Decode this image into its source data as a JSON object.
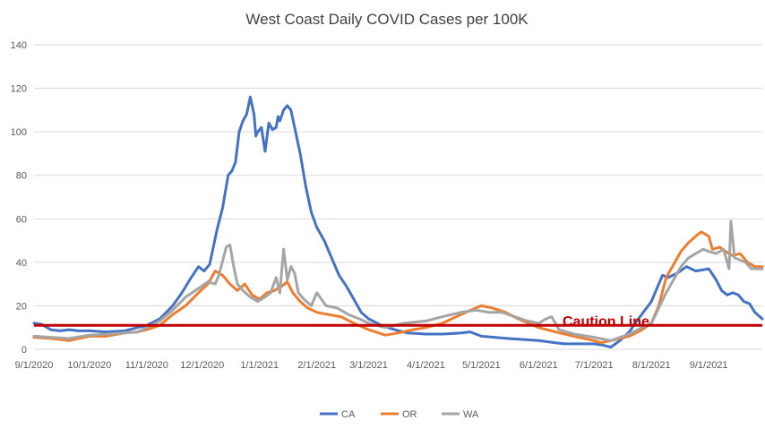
{
  "chart_data": {
    "type": "line",
    "title": "West Coast Daily COVID Cases per 100K",
    "xlabel": "",
    "ylabel": "",
    "ylim": [
      0,
      140
    ],
    "yticks": [
      "0",
      "20",
      "40",
      "60",
      "80",
      "100",
      "120",
      "140"
    ],
    "xticks": [
      {
        "date": "2020-09-01",
        "label": "9/1/2020"
      },
      {
        "date": "2020-10-01",
        "label": "10/1/2020"
      },
      {
        "date": "2020-11-01",
        "label": "11/1/2020"
      },
      {
        "date": "2020-12-01",
        "label": "12/1/2020"
      },
      {
        "date": "2021-01-01",
        "label": "1/1/2021"
      },
      {
        "date": "2021-02-01",
        "label": "2/1/2021"
      },
      {
        "date": "2021-03-01",
        "label": "3/1/2021"
      },
      {
        "date": "2021-04-01",
        "label": "4/1/2021"
      },
      {
        "date": "2021-05-01",
        "label": "5/1/2021"
      },
      {
        "date": "2021-06-01",
        "label": "6/1/2021"
      },
      {
        "date": "2021-07-01",
        "label": "7/1/2021"
      },
      {
        "date": "2021-08-01",
        "label": "8/1/2021"
      },
      {
        "date": "2021-09-01",
        "label": "9/1/2021"
      }
    ],
    "xlim": [
      "2020-09-01",
      "2021-09-30"
    ],
    "grid": true,
    "legend": "bottom",
    "reference_line": {
      "value": 11,
      "label": "Caution Line",
      "color": "#c00000"
    },
    "series": [
      {
        "name": "CA",
        "color": "#4472c4",
        "points": [
          [
            "2020-09-01",
            12
          ],
          [
            "2020-09-05",
            11.5
          ],
          [
            "2020-09-10",
            9
          ],
          [
            "2020-09-15",
            8.5
          ],
          [
            "2020-09-20",
            9
          ],
          [
            "2020-09-25",
            8.5
          ],
          [
            "2020-10-01",
            8.5
          ],
          [
            "2020-10-10",
            8
          ],
          [
            "2020-10-20",
            8.5
          ],
          [
            "2020-10-27",
            10
          ],
          [
            "2020-11-01",
            11
          ],
          [
            "2020-11-08",
            14
          ],
          [
            "2020-11-15",
            20
          ],
          [
            "2020-11-20",
            26
          ],
          [
            "2020-11-25",
            33
          ],
          [
            "2020-11-29",
            38
          ],
          [
            "2020-12-02",
            36
          ],
          [
            "2020-12-05",
            39
          ],
          [
            "2020-12-09",
            55
          ],
          [
            "2020-12-12",
            65
          ],
          [
            "2020-12-15",
            80
          ],
          [
            "2020-12-17",
            82
          ],
          [
            "2020-12-19",
            86
          ],
          [
            "2020-12-21",
            100
          ],
          [
            "2020-12-23",
            105
          ],
          [
            "2020-12-25",
            108
          ],
          [
            "2020-12-27",
            116
          ],
          [
            "2020-12-29",
            108
          ],
          [
            "2020-12-30",
            98
          ],
          [
            "2020-12-31",
            100
          ],
          [
            "2021-01-02",
            102
          ],
          [
            "2021-01-04",
            91
          ],
          [
            "2021-01-06",
            104
          ],
          [
            "2021-01-08",
            101
          ],
          [
            "2021-01-10",
            102
          ],
          [
            "2021-01-11",
            107
          ],
          [
            "2021-01-12",
            105
          ],
          [
            "2021-01-14",
            110
          ],
          [
            "2021-01-16",
            112
          ],
          [
            "2021-01-18",
            110
          ],
          [
            "2021-01-20",
            102
          ],
          [
            "2021-01-23",
            90
          ],
          [
            "2021-01-26",
            75
          ],
          [
            "2021-01-29",
            63
          ],
          [
            "2021-02-01",
            56
          ],
          [
            "2021-02-05",
            50
          ],
          [
            "2021-02-09",
            42
          ],
          [
            "2021-02-13",
            34
          ],
          [
            "2021-02-17",
            29
          ],
          [
            "2021-02-21",
            23
          ],
          [
            "2021-02-25",
            17
          ],
          [
            "2021-03-01",
            14
          ],
          [
            "2021-03-08",
            11
          ],
          [
            "2021-03-15",
            9
          ],
          [
            "2021-03-22",
            7.5
          ],
          [
            "2021-04-01",
            7
          ],
          [
            "2021-04-10",
            7
          ],
          [
            "2021-04-20",
            7.5
          ],
          [
            "2021-04-25",
            8
          ],
          [
            "2021-05-01",
            6
          ],
          [
            "2021-05-15",
            5
          ],
          [
            "2021-06-01",
            4
          ],
          [
            "2021-06-10",
            3
          ],
          [
            "2021-06-15",
            2.5
          ],
          [
            "2021-07-01",
            2.5
          ],
          [
            "2021-07-05",
            2
          ],
          [
            "2021-07-10",
            1
          ],
          [
            "2021-07-15",
            4
          ],
          [
            "2021-07-20",
            8
          ],
          [
            "2021-07-25",
            14
          ],
          [
            "2021-08-01",
            22
          ],
          [
            "2021-08-05",
            30
          ],
          [
            "2021-08-07",
            34
          ],
          [
            "2021-08-10",
            33
          ],
          [
            "2021-08-15",
            35
          ],
          [
            "2021-08-20",
            38
          ],
          [
            "2021-08-25",
            36
          ],
          [
            "2021-09-01",
            37
          ],
          [
            "2021-09-05",
            32
          ],
          [
            "2021-09-08",
            27
          ],
          [
            "2021-09-11",
            25
          ],
          [
            "2021-09-14",
            26
          ],
          [
            "2021-09-17",
            25
          ],
          [
            "2021-09-20",
            22
          ],
          [
            "2021-09-23",
            21
          ],
          [
            "2021-09-26",
            17
          ],
          [
            "2021-09-30",
            14
          ]
        ]
      },
      {
        "name": "OR",
        "color": "#ed7d31",
        "points": [
          [
            "2020-09-01",
            5.5
          ],
          [
            "2020-09-10",
            5
          ],
          [
            "2020-09-20",
            4
          ],
          [
            "2020-10-01",
            6
          ],
          [
            "2020-10-10",
            6
          ],
          [
            "2020-10-20",
            7.5
          ],
          [
            "2020-10-27",
            8
          ],
          [
            "2020-11-01",
            9
          ],
          [
            "2020-11-08",
            11
          ],
          [
            "2020-11-15",
            16
          ],
          [
            "2020-11-22",
            20
          ],
          [
            "2020-11-29",
            26
          ],
          [
            "2020-12-04",
            30
          ],
          [
            "2020-12-08",
            36
          ],
          [
            "2020-12-12",
            34
          ],
          [
            "2020-12-16",
            30
          ],
          [
            "2020-12-20",
            27
          ],
          [
            "2020-12-24",
            30
          ],
          [
            "2020-12-28",
            25
          ],
          [
            "2021-01-01",
            23
          ],
          [
            "2021-01-05",
            26
          ],
          [
            "2021-01-09",
            27
          ],
          [
            "2021-01-13",
            29
          ],
          [
            "2021-01-16",
            31
          ],
          [
            "2021-01-19",
            26
          ],
          [
            "2021-01-23",
            22
          ],
          [
            "2021-01-27",
            19
          ],
          [
            "2021-02-01",
            17
          ],
          [
            "2021-02-07",
            16
          ],
          [
            "2021-02-14",
            15
          ],
          [
            "2021-02-21",
            12
          ],
          [
            "2021-03-01",
            9
          ],
          [
            "2021-03-10",
            6.5
          ],
          [
            "2021-03-17",
            7.5
          ],
          [
            "2021-03-25",
            9
          ],
          [
            "2021-04-01",
            10
          ],
          [
            "2021-04-10",
            12
          ],
          [
            "2021-04-20",
            16
          ],
          [
            "2021-04-28",
            19
          ],
          [
            "2021-05-01",
            20
          ],
          [
            "2021-05-07",
            19
          ],
          [
            "2021-05-14",
            17
          ],
          [
            "2021-05-21",
            14
          ],
          [
            "2021-06-01",
            10
          ],
          [
            "2021-06-10",
            8
          ],
          [
            "2021-06-20",
            6
          ],
          [
            "2021-07-01",
            4
          ],
          [
            "2021-07-05",
            3
          ],
          [
            "2021-07-10",
            4
          ],
          [
            "2021-07-20",
            6
          ],
          [
            "2021-07-27",
            9
          ],
          [
            "2021-08-01",
            12
          ],
          [
            "2021-08-05",
            20
          ],
          [
            "2021-08-09",
            33
          ],
          [
            "2021-08-13",
            39
          ],
          [
            "2021-08-17",
            45
          ],
          [
            "2021-08-21",
            49
          ],
          [
            "2021-08-25",
            52
          ],
          [
            "2021-08-28",
            54
          ],
          [
            "2021-09-01",
            52
          ],
          [
            "2021-09-03",
            46
          ],
          [
            "2021-09-07",
            47
          ],
          [
            "2021-09-10",
            45
          ],
          [
            "2021-09-14",
            43
          ],
          [
            "2021-09-18",
            44
          ],
          [
            "2021-09-22",
            40
          ],
          [
            "2021-09-26",
            38
          ],
          [
            "2021-09-30",
            38
          ]
        ]
      },
      {
        "name": "WA",
        "color": "#a5a5a5",
        "points": [
          [
            "2020-09-01",
            6
          ],
          [
            "2020-09-10",
            5.5
          ],
          [
            "2020-09-20",
            5
          ],
          [
            "2020-10-01",
            6.5
          ],
          [
            "2020-10-10",
            7
          ],
          [
            "2020-10-20",
            7.5
          ],
          [
            "2020-10-27",
            8
          ],
          [
            "2020-11-01",
            10
          ],
          [
            "2020-11-08",
            13
          ],
          [
            "2020-11-15",
            18
          ],
          [
            "2020-11-22",
            24
          ],
          [
            "2020-11-29",
            28
          ],
          [
            "2020-12-04",
            31
          ],
          [
            "2020-12-08",
            30
          ],
          [
            "2020-12-10",
            34
          ],
          [
            "2020-12-14",
            47
          ],
          [
            "2020-12-16",
            48
          ],
          [
            "2020-12-18",
            38
          ],
          [
            "2020-12-20",
            30
          ],
          [
            "2020-12-23",
            27
          ],
          [
            "2020-12-27",
            24
          ],
          [
            "2020-12-31",
            22
          ],
          [
            "2021-01-04",
            24
          ],
          [
            "2021-01-07",
            26
          ],
          [
            "2021-01-10",
            33
          ],
          [
            "2021-01-12",
            26
          ],
          [
            "2021-01-14",
            46
          ],
          [
            "2021-01-16",
            32
          ],
          [
            "2021-01-18",
            38
          ],
          [
            "2021-01-20",
            35
          ],
          [
            "2021-01-22",
            26
          ],
          [
            "2021-01-25",
            23
          ],
          [
            "2021-01-29",
            20
          ],
          [
            "2021-02-01",
            26
          ],
          [
            "2021-02-06",
            20
          ],
          [
            "2021-02-12",
            19
          ],
          [
            "2021-02-18",
            16
          ],
          [
            "2021-02-24",
            14
          ],
          [
            "2021-03-01",
            12
          ],
          [
            "2021-03-10",
            10
          ],
          [
            "2021-03-20",
            12
          ],
          [
            "2021-04-01",
            13
          ],
          [
            "2021-04-10",
            15
          ],
          [
            "2021-04-20",
            17
          ],
          [
            "2021-04-28",
            18
          ],
          [
            "2021-05-05",
            17
          ],
          [
            "2021-05-12",
            17
          ],
          [
            "2021-05-19",
            15
          ],
          [
            "2021-05-26",
            13
          ],
          [
            "2021-06-01",
            12
          ],
          [
            "2021-06-05",
            14
          ],
          [
            "2021-06-08",
            15
          ],
          [
            "2021-06-12",
            9
          ],
          [
            "2021-06-20",
            7
          ],
          [
            "2021-07-01",
            5.5
          ],
          [
            "2021-07-10",
            4
          ],
          [
            "2021-07-20",
            7
          ],
          [
            "2021-07-27",
            10
          ],
          [
            "2021-08-01",
            12
          ],
          [
            "2021-08-05",
            19
          ],
          [
            "2021-08-09",
            26
          ],
          [
            "2021-08-13",
            32
          ],
          [
            "2021-08-17",
            38
          ],
          [
            "2021-08-21",
            42
          ],
          [
            "2021-08-25",
            44
          ],
          [
            "2021-08-29",
            46
          ],
          [
            "2021-09-01",
            45
          ],
          [
            "2021-09-05",
            44
          ],
          [
            "2021-09-09",
            46
          ],
          [
            "2021-09-12",
            37
          ],
          [
            "2021-09-13",
            59
          ],
          [
            "2021-09-15",
            42
          ],
          [
            "2021-09-18",
            41
          ],
          [
            "2021-09-21",
            40
          ],
          [
            "2021-09-24",
            37
          ],
          [
            "2021-09-27",
            37
          ],
          [
            "2021-09-30",
            37
          ]
        ]
      }
    ]
  }
}
